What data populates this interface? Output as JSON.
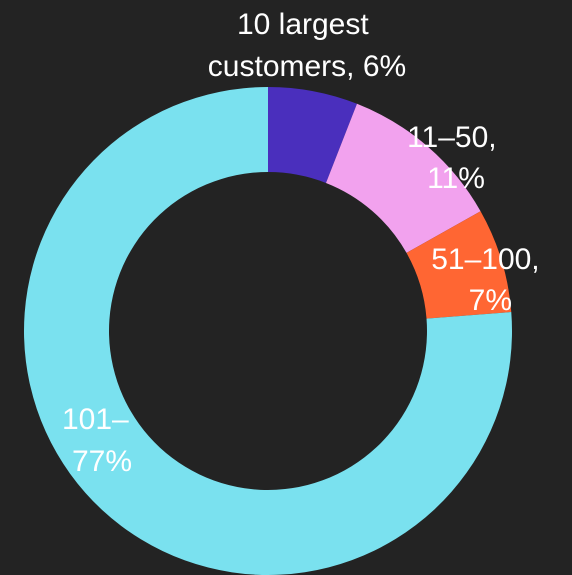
{
  "chart_data": {
    "type": "pie",
    "hole": true,
    "title": "",
    "labels": [
      "10 largest customers",
      "11–50",
      "51–100",
      "101–"
    ],
    "values": [
      6,
      11,
      7,
      77
    ],
    "percent_labels": [
      "6%",
      "11%",
      "7%",
      "77%"
    ],
    "colors": [
      "#4a2fbd",
      "#f2a2ee",
      "#ff6633",
      "#7ae1ef"
    ],
    "legend": "none"
  },
  "slice_labels": [
    {
      "lines": [
        "10 largest",
        "customers, 6%"
      ]
    },
    {
      "lines": [
        "11–50,",
        "11%"
      ]
    },
    {
      "lines": [
        "51–100,",
        "7%"
      ]
    },
    {
      "lines": [
        "101–",
        "77%"
      ]
    }
  ]
}
